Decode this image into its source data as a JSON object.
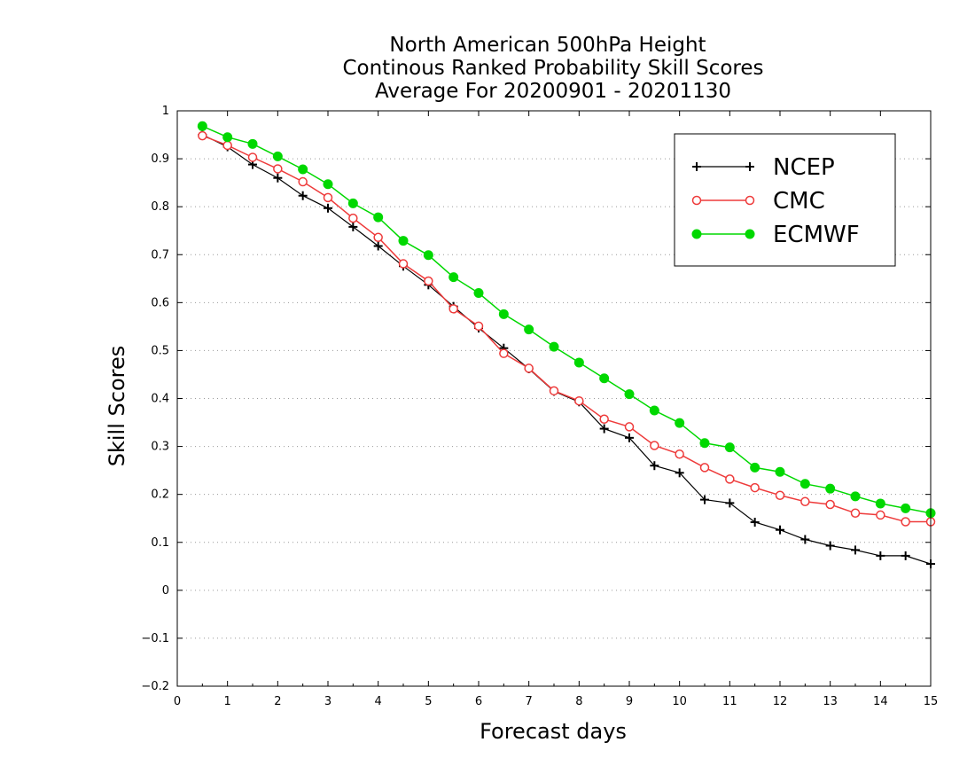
{
  "chart_data": {
    "type": "line",
    "title": [
      "North American 500hPa Height",
      "Continous Ranked Probability Skill Scores",
      "Average For 20200901 - 20201130"
    ],
    "xlabel": "Forecast days",
    "ylabel": "Skill Scores",
    "xlim": [
      0,
      15
    ],
    "ylim": [
      -0.2,
      1
    ],
    "x_ticks": [
      0,
      1,
      2,
      3,
      4,
      5,
      6,
      7,
      8,
      9,
      10,
      11,
      12,
      13,
      14,
      15
    ],
    "y_ticks": [
      -0.2,
      -0.1,
      0,
      0.1,
      0.2,
      0.3,
      0.4,
      0.5,
      0.6,
      0.7,
      0.8,
      0.9,
      1
    ],
    "y_tick_labels": [
      "−0.2",
      "−0.1",
      "0",
      "0.1",
      "0.2",
      "0.3",
      "0.4",
      "0.5",
      "0.6",
      "0.7",
      "0.8",
      "0.9",
      "1"
    ],
    "grid": "horizontal dotted",
    "legend_position": "top-right",
    "x": [
      0.5,
      1,
      1.5,
      2,
      2.5,
      3,
      3.5,
      4,
      4.5,
      5,
      5.5,
      6,
      6.5,
      7,
      7.5,
      8,
      8.5,
      9,
      9.5,
      10,
      10.5,
      11,
      11.5,
      12,
      12.5,
      13,
      13.5,
      14,
      14.5,
      15
    ],
    "series": [
      {
        "name": "NCEP",
        "color": "#000000",
        "marker": "plus",
        "values": [
          0.95,
          0.925,
          0.888,
          0.86,
          0.823,
          0.797,
          0.758,
          0.718,
          0.676,
          0.637,
          0.592,
          0.547,
          0.505,
          0.462,
          0.415,
          0.393,
          0.337,
          0.318,
          0.26,
          0.245,
          0.189,
          0.182,
          0.142,
          0.126,
          0.106,
          0.093,
          0.084,
          0.072,
          0.072,
          0.055
        ]
      },
      {
        "name": "CMC",
        "color": "#ee3b3b",
        "marker": "open-circle",
        "values": [
          0.948,
          0.928,
          0.903,
          0.879,
          0.852,
          0.819,
          0.776,
          0.736,
          0.681,
          0.645,
          0.587,
          0.551,
          0.494,
          0.463,
          0.416,
          0.395,
          0.357,
          0.341,
          0.302,
          0.284,
          0.256,
          0.232,
          0.214,
          0.198,
          0.185,
          0.179,
          0.161,
          0.157,
          0.143,
          0.143
        ]
      },
      {
        "name": "ECMWF",
        "color": "#00d800",
        "marker": "filled-circle",
        "values": [
          0.968,
          0.945,
          0.931,
          0.905,
          0.878,
          0.847,
          0.807,
          0.778,
          0.729,
          0.699,
          0.653,
          0.62,
          0.576,
          0.544,
          0.508,
          0.475,
          0.442,
          0.409,
          0.375,
          0.349,
          0.307,
          0.298,
          0.256,
          0.247,
          0.222,
          0.212,
          0.196,
          0.181,
          0.171,
          0.161
        ]
      }
    ]
  }
}
